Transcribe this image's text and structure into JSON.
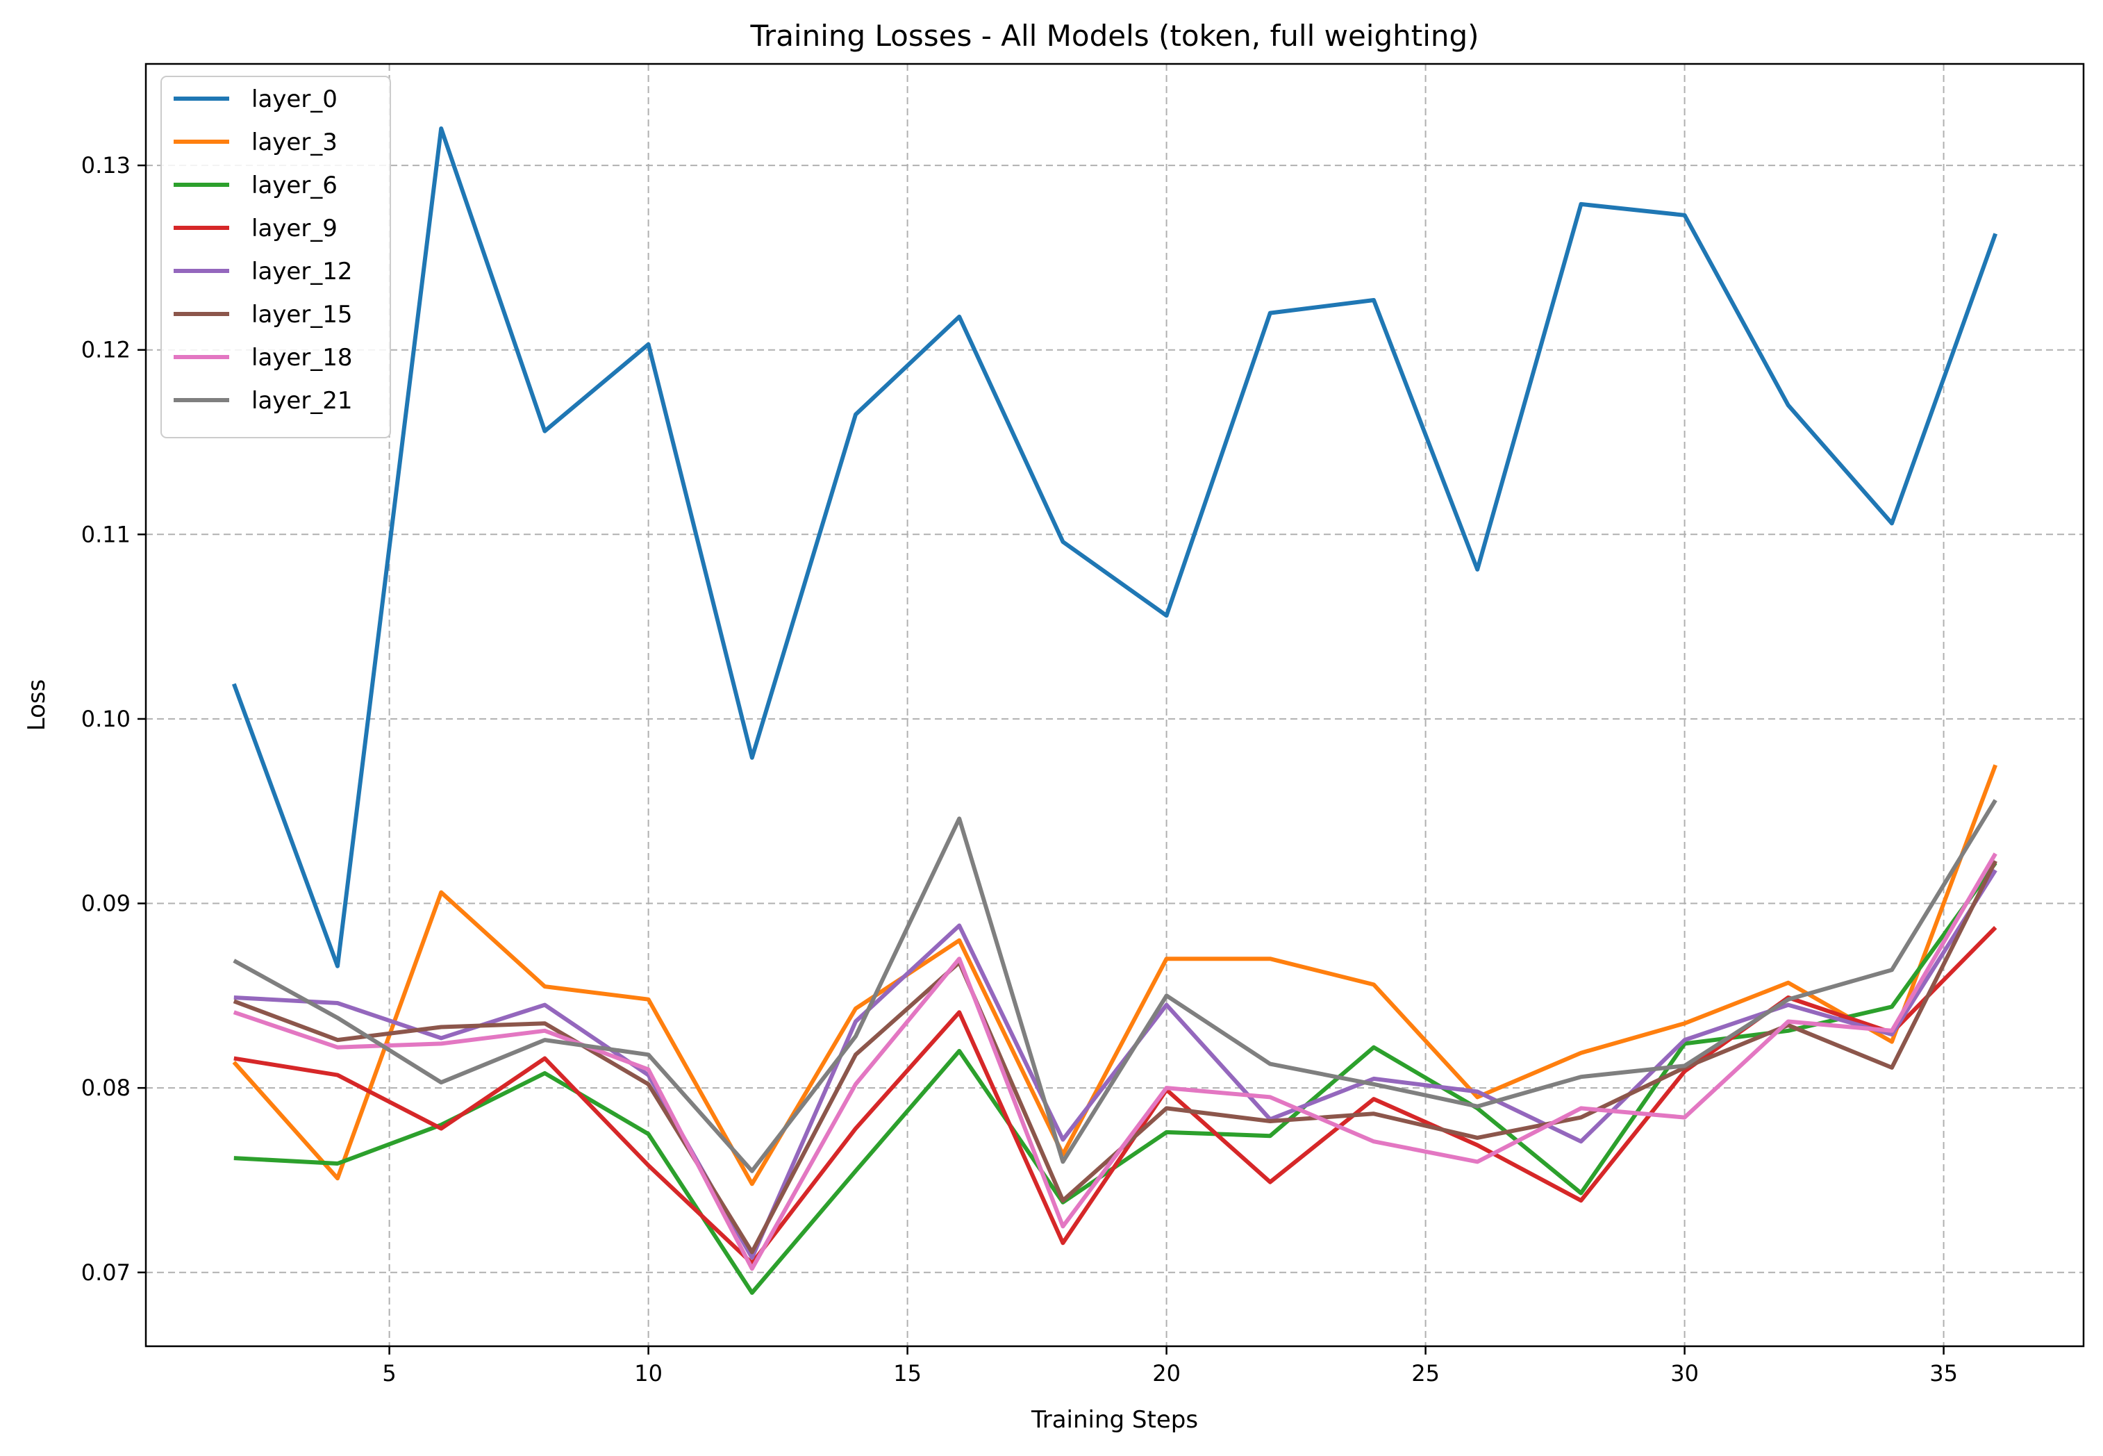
{
  "chart_data": {
    "type": "line",
    "title": "Training Losses - All Models (token, full weighting)",
    "xlabel": "Training Steps",
    "ylabel": "Loss",
    "xlim": [
      0.3,
      37.7
    ],
    "ylim": [
      0.066,
      0.1355
    ],
    "xticks": [
      5,
      10,
      15,
      20,
      25,
      30,
      35
    ],
    "yticks": [
      0.07,
      0.08,
      0.09,
      0.1,
      0.11,
      0.12,
      0.13
    ],
    "ytick_labels": [
      "0.07",
      "0.08",
      "0.09",
      "0.10",
      "0.11",
      "0.12",
      "0.13"
    ],
    "xtick_labels": [
      "5",
      "10",
      "15",
      "20",
      "25",
      "30",
      "35"
    ],
    "grid": true,
    "legend_position": "top-left",
    "x": [
      2,
      4,
      6,
      8,
      10,
      12,
      14,
      16,
      18,
      20,
      22,
      24,
      26,
      28,
      30,
      32,
      34,
      36
    ],
    "series": [
      {
        "name": "layer_0",
        "color": "#1f77b4",
        "values": [
          0.1019,
          0.0866,
          0.132,
          0.1156,
          0.1203,
          0.0979,
          0.1165,
          0.1218,
          0.1096,
          0.1056,
          0.122,
          0.1227,
          0.1081,
          0.1279,
          0.1273,
          0.117,
          0.1106,
          0.1263
        ]
      },
      {
        "name": "layer_3",
        "color": "#ff7f0e",
        "values": [
          0.0814,
          0.0751,
          0.0906,
          0.0855,
          0.0848,
          0.0748,
          0.0843,
          0.088,
          0.0764,
          0.087,
          0.087,
          0.0856,
          0.0795,
          0.0819,
          0.0835,
          0.0857,
          0.0825,
          0.0975
        ]
      },
      {
        "name": "layer_6",
        "color": "#2ca02c",
        "values": [
          0.0762,
          0.0759,
          0.078,
          0.0808,
          0.0775,
          0.0689,
          0.0755,
          0.082,
          0.0738,
          0.0776,
          0.0774,
          0.0822,
          0.0789,
          0.0743,
          0.0824,
          0.0831,
          0.0844,
          0.0922
        ]
      },
      {
        "name": "layer_9",
        "color": "#d62728",
        "values": [
          0.0816,
          0.0807,
          0.0778,
          0.0816,
          0.0758,
          0.0705,
          0.0778,
          0.0841,
          0.0716,
          0.0799,
          0.0749,
          0.0794,
          0.0769,
          0.0739,
          0.0809,
          0.0849,
          0.083,
          0.0887
        ]
      },
      {
        "name": "layer_12",
        "color": "#9467bd",
        "values": [
          0.0849,
          0.0846,
          0.0827,
          0.0845,
          0.0807,
          0.0708,
          0.0836,
          0.0888,
          0.0772,
          0.0845,
          0.0783,
          0.0805,
          0.0798,
          0.0771,
          0.0826,
          0.0845,
          0.0829,
          0.0918
        ]
      },
      {
        "name": "layer_15",
        "color": "#8c564b",
        "values": [
          0.0847,
          0.0826,
          0.0833,
          0.0835,
          0.0802,
          0.0711,
          0.0818,
          0.0868,
          0.0739,
          0.0789,
          0.0782,
          0.0786,
          0.0773,
          0.0784,
          0.0811,
          0.0834,
          0.0811,
          0.0923
        ]
      },
      {
        "name": "layer_18",
        "color": "#e377c2",
        "values": [
          0.0841,
          0.0822,
          0.0824,
          0.0831,
          0.081,
          0.0702,
          0.0802,
          0.087,
          0.0725,
          0.08,
          0.0795,
          0.0771,
          0.076,
          0.0789,
          0.0784,
          0.0836,
          0.0831,
          0.0927
        ]
      },
      {
        "name": "layer_21",
        "color": "#7f7f7f",
        "values": [
          0.0869,
          0.0838,
          0.0803,
          0.0826,
          0.0818,
          0.0755,
          0.0828,
          0.0946,
          0.076,
          0.085,
          0.0813,
          0.0802,
          0.079,
          0.0806,
          0.0812,
          0.0848,
          0.0864,
          0.0956
        ]
      }
    ]
  }
}
